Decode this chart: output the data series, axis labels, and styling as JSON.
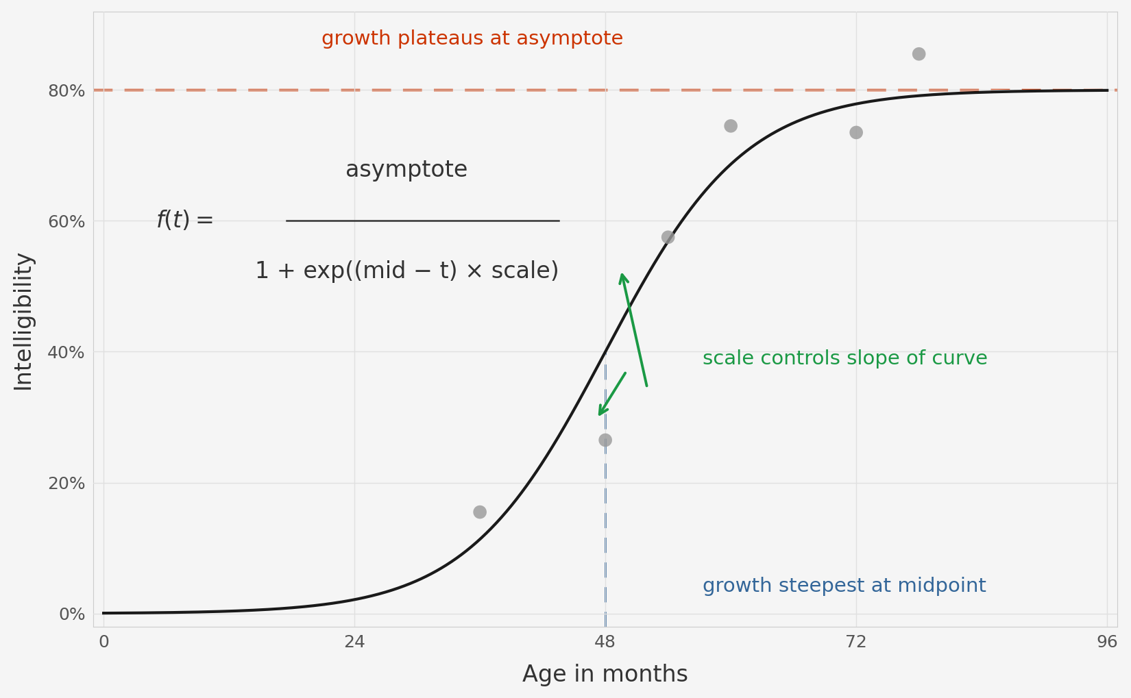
{
  "asymptote": 0.8,
  "mid": 48,
  "scale": 0.15,
  "x_min": 0,
  "x_max": 96,
  "y_min": -0.02,
  "y_max": 0.92,
  "scatter_points": [
    [
      36,
      0.155
    ],
    [
      48,
      0.265
    ],
    [
      54,
      0.575
    ],
    [
      60,
      0.745
    ],
    [
      72,
      0.735
    ],
    [
      78,
      0.855
    ]
  ],
  "scatter_color": "#999999",
  "scatter_size": 200,
  "curve_color": "#1a1a1a",
  "curve_linewidth": 3.0,
  "asymptote_color": "#cc3300",
  "asymptote_linewidth": 2.5,
  "midpoint_vline_color": "#336699",
  "midpoint_vline_linewidth": 2.0,
  "arrow_color": "#1a9944",
  "background_color": "#f5f5f5",
  "grid_color": "#e0e0e0",
  "xlabel": "Age in months",
  "ylabel": "Intelligibility",
  "x_ticks": [
    0,
    24,
    48,
    72,
    96
  ],
  "y_ticks": [
    0.0,
    0.2,
    0.4,
    0.6,
    0.8
  ],
  "y_tick_labels": [
    "0%",
    "20%",
    "40%",
    "60%",
    "80%"
  ],
  "annotation_asymptote": "growth plateaus at asymptote",
  "annotation_midpoint": "growth steepest at midpoint",
  "annotation_scale": "scale controls slope of curve",
  "annotation_asymptote_color": "#cc3300",
  "annotation_midpoint_color": "#336699",
  "annotation_scale_color": "#1a9944",
  "equation_numerator": "asymptote",
  "equation_denominator": "1 + exp((mid − t) × scale)",
  "figsize": [
    16.5,
    10.19
  ],
  "dpi": 100
}
